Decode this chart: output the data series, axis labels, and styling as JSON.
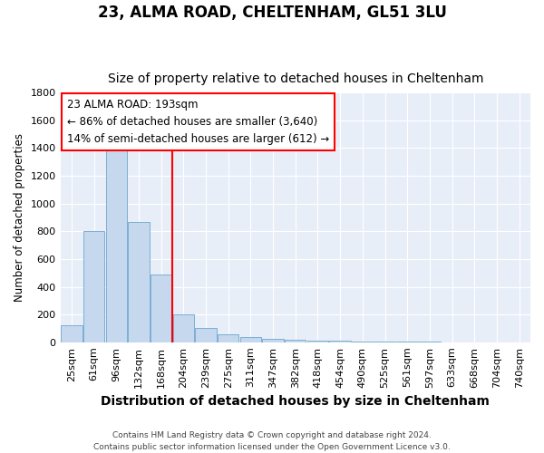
{
  "title": "23, ALMA ROAD, CHELTENHAM, GL51 3LU",
  "subtitle": "Size of property relative to detached houses in Cheltenham",
  "xlabel": "Distribution of detached houses by size in Cheltenham",
  "ylabel": "Number of detached properties",
  "footer_line1": "Contains HM Land Registry data © Crown copyright and database right 2024.",
  "footer_line2": "Contains public sector information licensed under the Open Government Licence v3.0.",
  "categories": [
    "25sqm",
    "61sqm",
    "96sqm",
    "132sqm",
    "168sqm",
    "204sqm",
    "239sqm",
    "275sqm",
    "311sqm",
    "347sqm",
    "382sqm",
    "418sqm",
    "454sqm",
    "490sqm",
    "525sqm",
    "561sqm",
    "597sqm",
    "633sqm",
    "668sqm",
    "704sqm",
    "740sqm"
  ],
  "values": [
    120,
    800,
    1480,
    870,
    490,
    200,
    100,
    60,
    40,
    25,
    20,
    15,
    10,
    5,
    3,
    2,
    2,
    1,
    1,
    1,
    1
  ],
  "bar_color": "#c5d8ed",
  "bar_edge_color": "#7bafd4",
  "annotation_line1": "23 ALMA ROAD: 193sqm",
  "annotation_line2": "← 86% of detached houses are smaller (3,640)",
  "annotation_line3": "14% of semi-detached houses are larger (612) →",
  "redline_index": 5,
  "ylim": [
    0,
    1800
  ],
  "yticks": [
    0,
    200,
    400,
    600,
    800,
    1000,
    1200,
    1400,
    1600,
    1800
  ],
  "background_color": "#e8eef8",
  "grid_color": "#ffffff",
  "title_fontsize": 12,
  "subtitle_fontsize": 10,
  "xlabel_fontsize": 10,
  "ylabel_fontsize": 8.5,
  "tick_fontsize": 8,
  "footer_fontsize": 6.5
}
